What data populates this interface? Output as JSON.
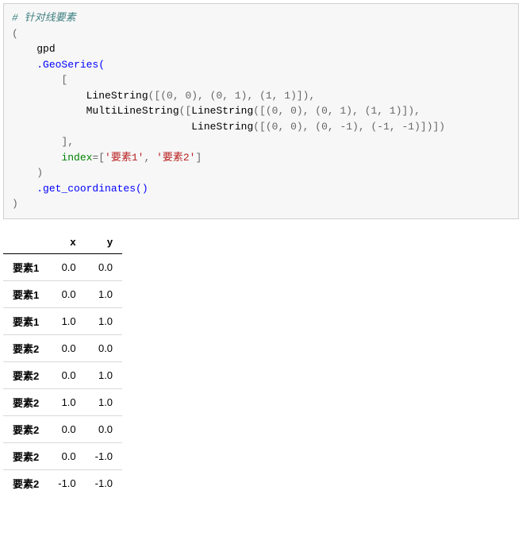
{
  "code": {
    "comment": "# 针对线要素",
    "open_paren": "(",
    "gpd": "gpd",
    "geoseries": ".GeoSeries(",
    "bracket_open": "[",
    "linestring": "LineString",
    "multilinestring": "MultiLineString",
    "coords_ls1": "([(0, 0), (0, 1), (1, 1)]),",
    "coords_mls_open": "([",
    "coords_mls_ls1": "([(0, 0), (0, 1), (1, 1)]),",
    "coords_mls_ls2": "([(0, 0), (0, -1), (-1, -1)])])",
    "bracket_close": "],",
    "index_kw": "index",
    "index_eq": "=[",
    "index_v1": "'要素1'",
    "index_comma": ", ",
    "index_v2": "'要素2'",
    "index_close": "]",
    "close_paren1": ")",
    "get_coords": ".get_coordinates()",
    "close_paren2": ")"
  },
  "table": {
    "columns": [
      "x",
      "y"
    ],
    "rows": [
      {
        "idx": "要素1",
        "x": "0.0",
        "y": "0.0"
      },
      {
        "idx": "要素1",
        "x": "0.0",
        "y": "1.0"
      },
      {
        "idx": "要素1",
        "x": "1.0",
        "y": "1.0"
      },
      {
        "idx": "要素2",
        "x": "0.0",
        "y": "0.0"
      },
      {
        "idx": "要素2",
        "x": "0.0",
        "y": "1.0"
      },
      {
        "idx": "要素2",
        "x": "1.0",
        "y": "1.0"
      },
      {
        "idx": "要素2",
        "x": "0.0",
        "y": "0.0"
      },
      {
        "idx": "要素2",
        "x": "0.0",
        "y": "-1.0"
      },
      {
        "idx": "要素2",
        "x": "-1.0",
        "y": "-1.0"
      }
    ]
  },
  "colors": {
    "code_bg": "#f7f7f7",
    "code_border": "#cfcfcf",
    "comment": "#408080",
    "func": "#0000ff",
    "string": "#ba2121",
    "keyword": "#008000",
    "table_border": "#d9d9d9"
  }
}
